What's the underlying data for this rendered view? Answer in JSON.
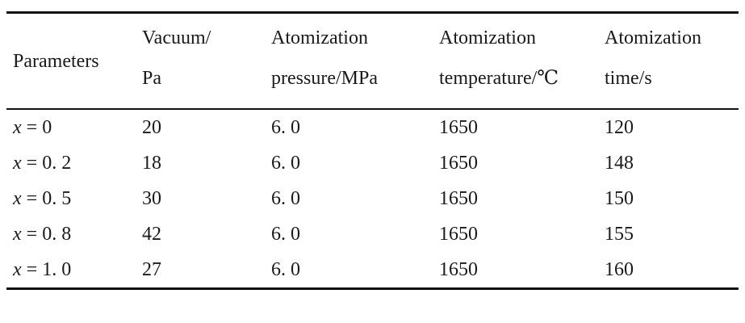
{
  "table": {
    "headers": [
      {
        "line1": "Parameters",
        "line2": ""
      },
      {
        "line1": "Vacuum/",
        "line2": "Pa"
      },
      {
        "line1": "Atomization",
        "line2": "pressure/MPa"
      },
      {
        "line1": "Atomization",
        "line2": "temperature/℃"
      },
      {
        "line1": "Atomization",
        "line2": "time/s"
      }
    ],
    "rows": [
      {
        "x_var": "x",
        "x_val": " = 0",
        "vacuum": "20",
        "pressure": "6. 0",
        "temperature": "1650",
        "time": "120"
      },
      {
        "x_var": "x",
        "x_val": " = 0. 2",
        "vacuum": "18",
        "pressure": "6. 0",
        "temperature": "1650",
        "time": "148"
      },
      {
        "x_var": "x",
        "x_val": " = 0. 5",
        "vacuum": "30",
        "pressure": "6. 0",
        "temperature": "1650",
        "time": "150"
      },
      {
        "x_var": "x",
        "x_val": " = 0. 8",
        "vacuum": "42",
        "pressure": "6. 0",
        "temperature": "1650",
        "time": "155"
      },
      {
        "x_var": "x",
        "x_val": " = 1. 0",
        "vacuum": "27",
        "pressure": "6. 0",
        "temperature": "1650",
        "time": "160"
      }
    ]
  }
}
